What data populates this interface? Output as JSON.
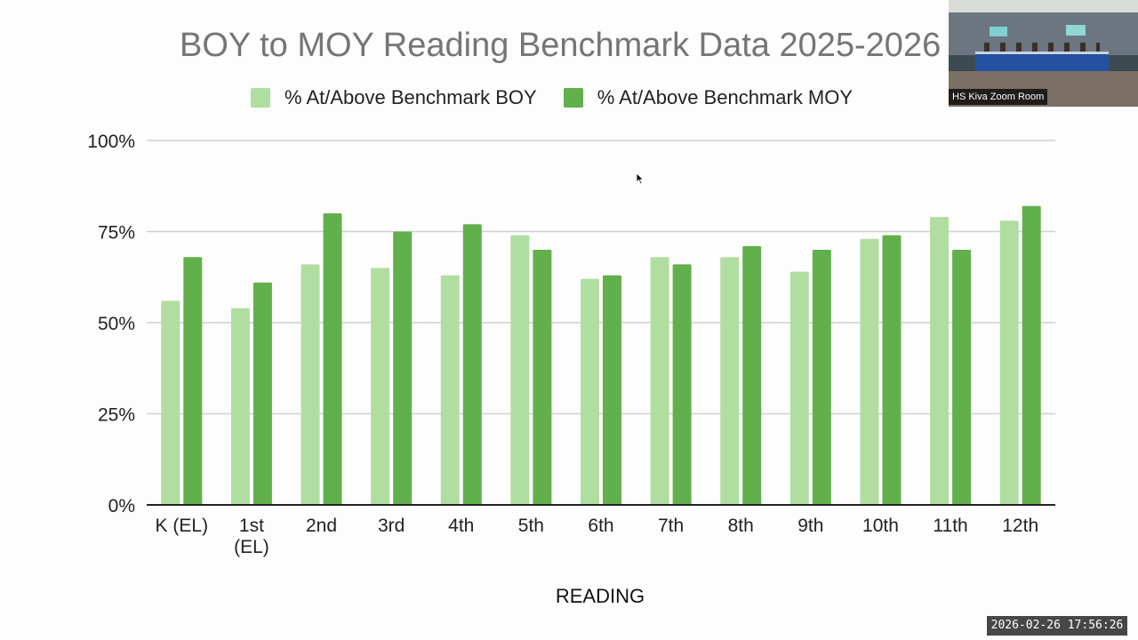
{
  "slide": {
    "title": "BOY to MOY Reading Benchmark Data 2025-2026"
  },
  "colors": {
    "boy": "#b0deA0",
    "moy": "#62b04b",
    "grid": "#d0d0d0",
    "axis": "#222222"
  },
  "chart_data": {
    "type": "bar",
    "title": "BOY to MOY Reading Benchmark Data 2025-2026",
    "xlabel": "READING",
    "ylabel": "",
    "ylim": [
      0,
      100
    ],
    "yticks": [
      "0%",
      "25%",
      "50%",
      "75%",
      "100%"
    ],
    "ytick_values": [
      0,
      25,
      50,
      75,
      100
    ],
    "grid": true,
    "legend_position": "top",
    "categories": [
      "K (EL)",
      "1st (EL)",
      "2nd",
      "3rd",
      "4th",
      "5th",
      "6th",
      "7th",
      "8th",
      "9th",
      "10th",
      "11th",
      "12th"
    ],
    "category_lines": [
      [
        "K (EL)"
      ],
      [
        "1st",
        "(EL)"
      ],
      [
        "2nd"
      ],
      [
        "3rd"
      ],
      [
        "4th"
      ],
      [
        "5th"
      ],
      [
        "6th"
      ],
      [
        "7th"
      ],
      [
        "8th"
      ],
      [
        "9th"
      ],
      [
        "10th"
      ],
      [
        "11th"
      ],
      [
        "12th"
      ]
    ],
    "series": [
      {
        "name": "% At/Above Benchmark BOY",
        "values": [
          56,
          54,
          66,
          65,
          63,
          74,
          62,
          68,
          68,
          64,
          73,
          79,
          78
        ]
      },
      {
        "name": "% At/Above Benchmark MOY",
        "values": [
          68,
          61,
          80,
          75,
          77,
          70,
          63,
          66,
          71,
          70,
          74,
          70,
          82
        ]
      }
    ]
  },
  "video": {
    "participant_label": "HS Kiva Zoom Room"
  },
  "overlay": {
    "timestamp": "2026-02-26  17:56:26"
  }
}
